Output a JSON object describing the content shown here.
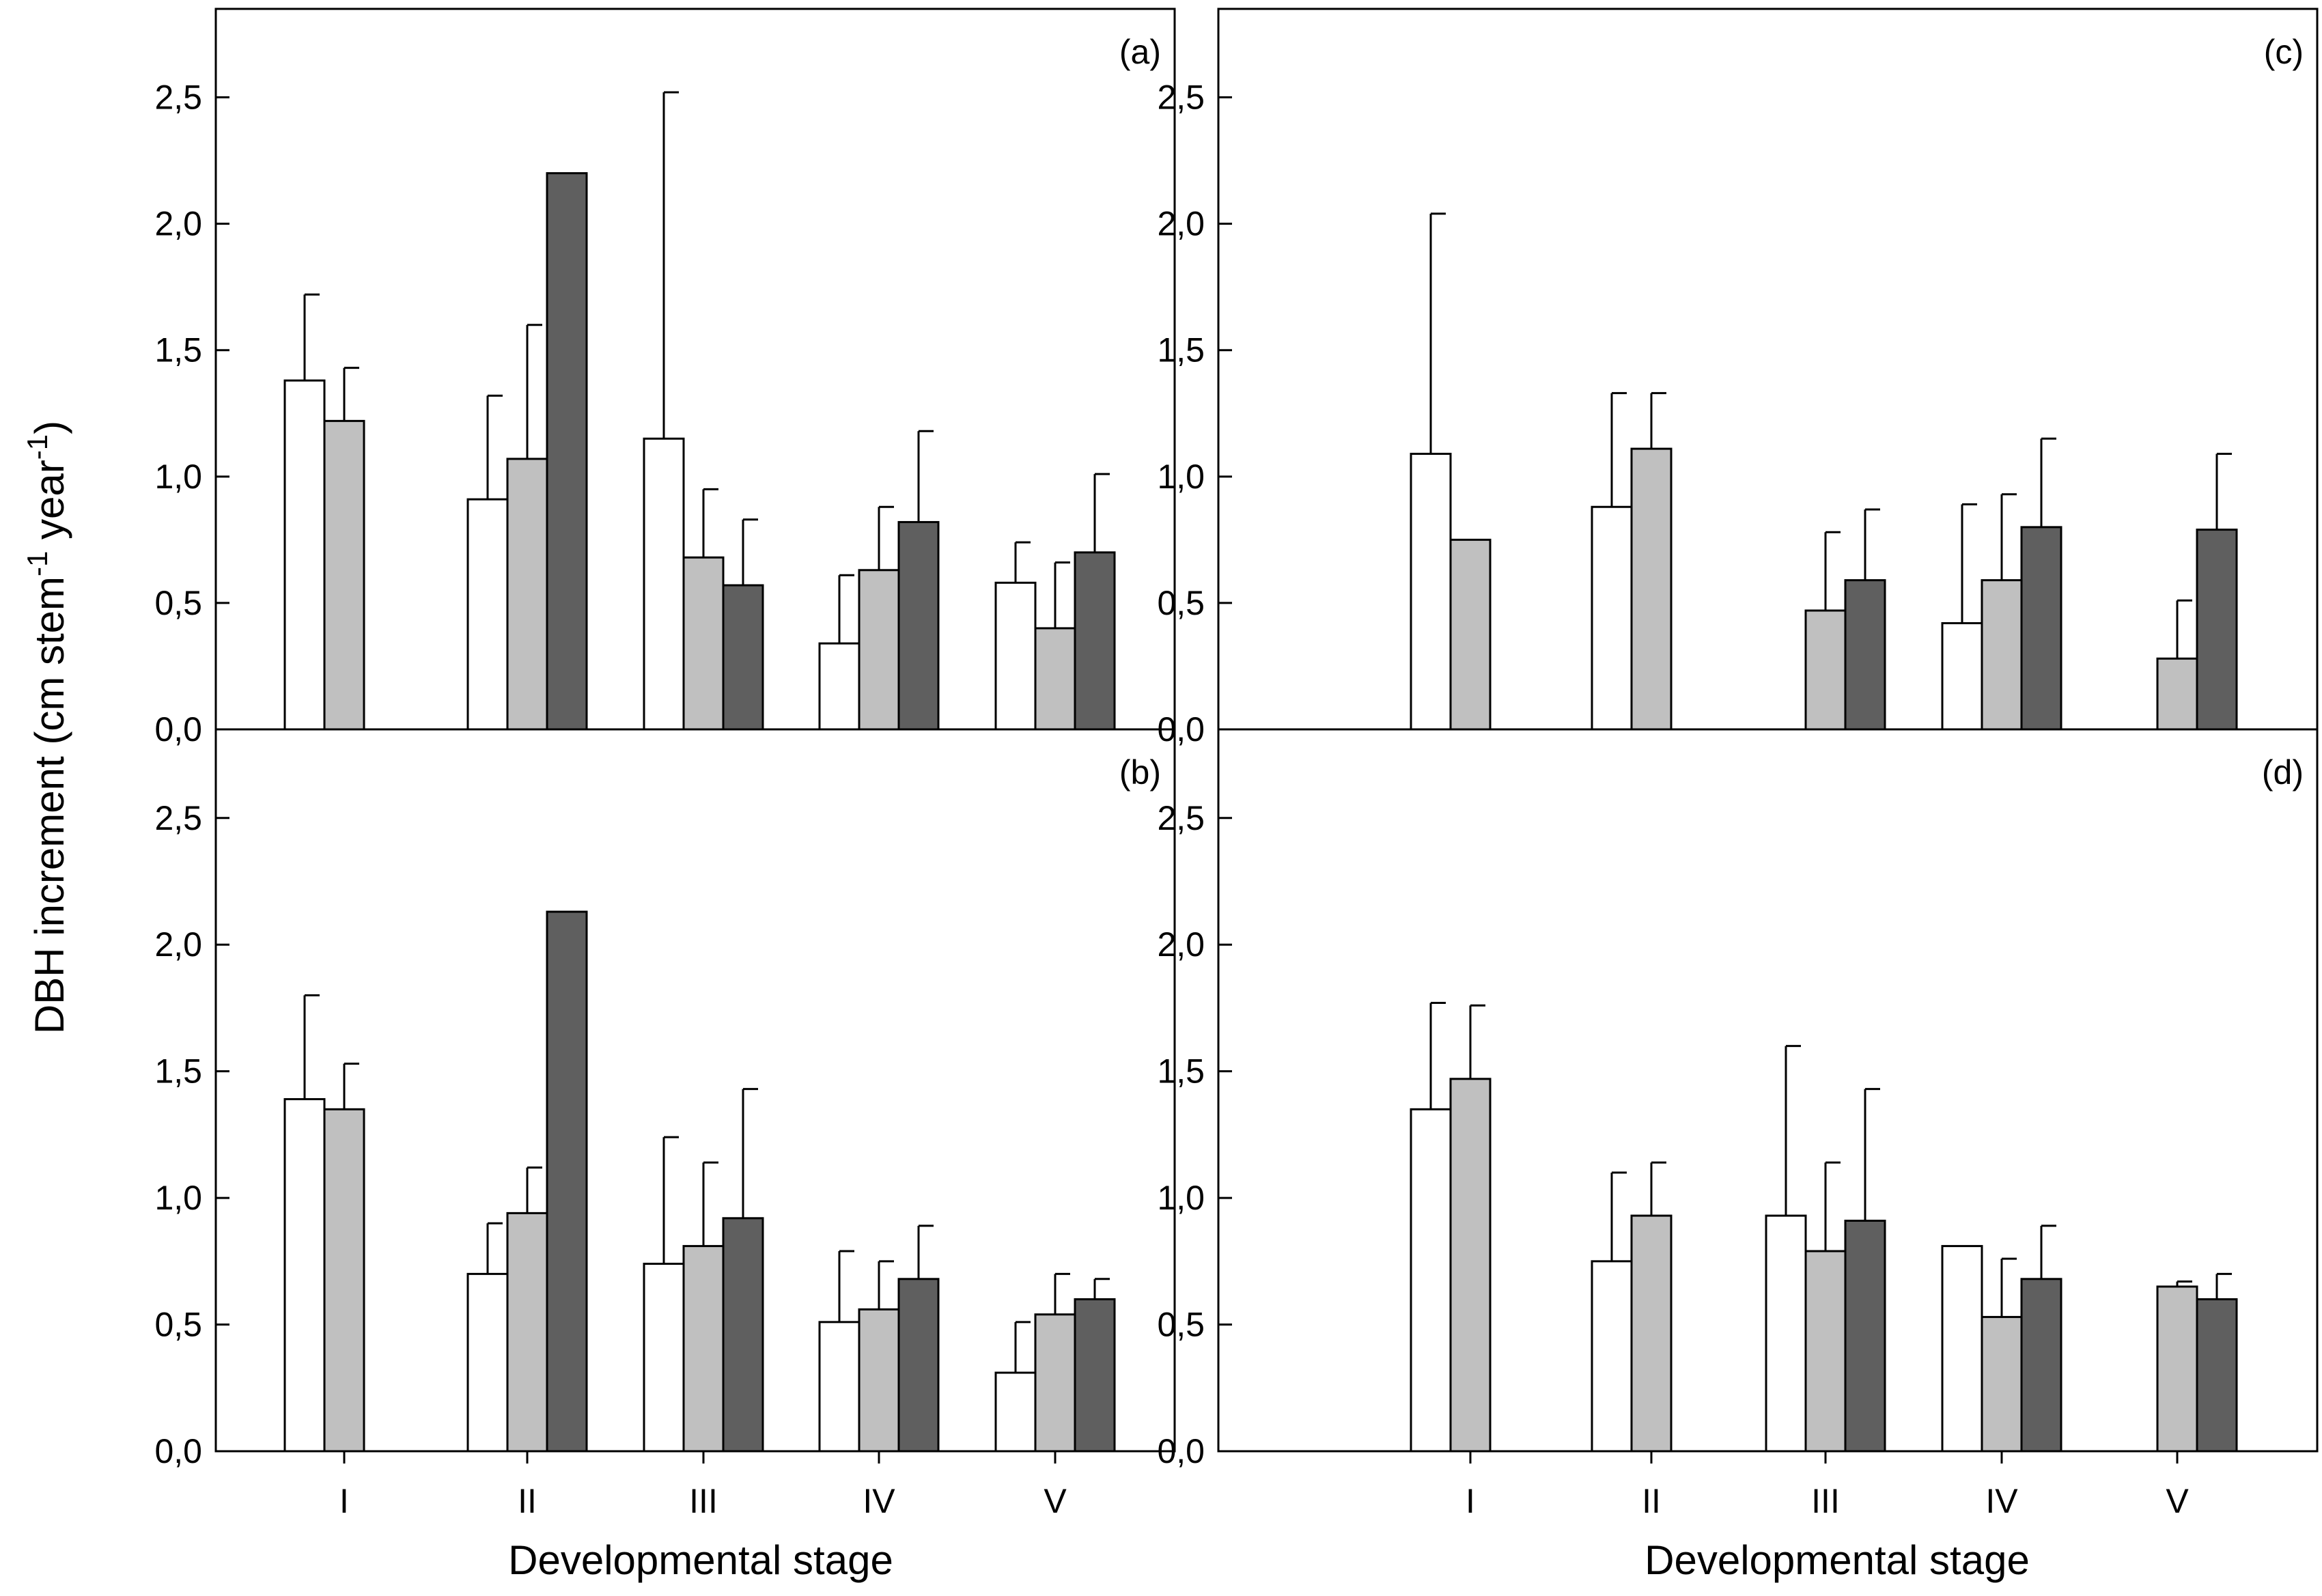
{
  "chart_data": {
    "type": "bar",
    "layout": "2x2 panels, shared x and y axis labels",
    "xlabel": "Developmental stage",
    "ylabel": {
      "text_main": "DBH increment (cm stem",
      "sup1": "-1",
      "text_mid": " year",
      "sup2": "-1",
      "text_end": ")"
    },
    "ylim": [
      0,
      2.85
    ],
    "yticks": [
      "0,0",
      "0,5",
      "1,0",
      "1,5",
      "2,0",
      "2,5"
    ],
    "categories": [
      "I",
      "II",
      "III",
      "IV",
      "V"
    ],
    "series_colors": [
      "#ffffff",
      "#c0c0c0",
      "#5f5f5f"
    ],
    "grid": false,
    "legend": "none",
    "panels": [
      {
        "label": "(a)",
        "values": [
          [
            1.38,
            1.22,
            null
          ],
          [
            0.91,
            1.07,
            2.2
          ],
          [
            1.15,
            0.68,
            0.57
          ],
          [
            0.34,
            0.63,
            0.82
          ],
          [
            0.58,
            0.4,
            0.7
          ]
        ],
        "errors": [
          [
            0.34,
            0.21,
            null
          ],
          [
            0.41,
            0.53,
            null
          ],
          [
            1.37,
            0.27,
            0.26
          ],
          [
            0.27,
            0.25,
            0.36
          ],
          [
            0.16,
            0.26,
            0.31
          ]
        ]
      },
      {
        "label": "(b)",
        "values": [
          [
            1.39,
            1.35,
            null
          ],
          [
            0.7,
            0.94,
            2.13
          ],
          [
            0.74,
            0.81,
            0.92
          ],
          [
            0.51,
            0.56,
            0.68
          ],
          [
            0.31,
            0.54,
            0.6
          ]
        ],
        "errors": [
          [
            0.41,
            0.18,
            null
          ],
          [
            0.2,
            0.18,
            null
          ],
          [
            0.5,
            0.33,
            0.51
          ],
          [
            0.28,
            0.19,
            0.21
          ],
          [
            0.2,
            0.16,
            0.08
          ]
        ]
      },
      {
        "label": "(c)",
        "values": [
          [
            1.09,
            0.75,
            null
          ],
          [
            0.88,
            1.11,
            null
          ],
          [
            null,
            0.47,
            0.59
          ],
          [
            0.42,
            0.59,
            0.8
          ],
          [
            null,
            0.28,
            0.79
          ]
        ],
        "errors": [
          [
            0.95,
            null,
            null
          ],
          [
            0.45,
            0.22,
            null
          ],
          [
            null,
            0.31,
            0.28
          ],
          [
            0.47,
            0.34,
            0.35
          ],
          [
            null,
            0.23,
            0.3
          ]
        ]
      },
      {
        "label": "(d)",
        "values": [
          [
            1.35,
            1.47,
            null
          ],
          [
            0.75,
            0.93,
            null
          ],
          [
            0.93,
            0.79,
            0.91
          ],
          [
            0.81,
            0.53,
            0.68
          ],
          [
            null,
            0.65,
            0.6
          ]
        ],
        "errors": [
          [
            0.42,
            0.29,
            null
          ],
          [
            0.35,
            0.21,
            null
          ],
          [
            0.67,
            0.35,
            0.52
          ],
          [
            null,
            0.23,
            0.21
          ],
          [
            null,
            0.02,
            0.1
          ]
        ]
      }
    ]
  }
}
